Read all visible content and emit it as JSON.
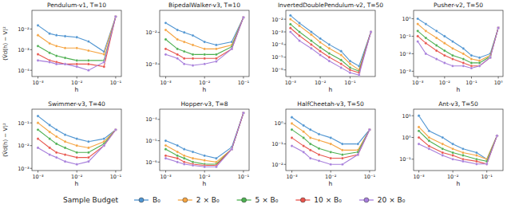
{
  "chart_data": [
    {
      "type": "line",
      "title": "Pendulum-v1, T=10",
      "xlabel": "h",
      "ylabel": "(V̂d(h) − V)²",
      "log": true,
      "marker": "circle",
      "x": [
        0.001,
        0.002,
        0.003,
        0.005,
        0.01,
        0.02,
        0.05,
        0.1
      ],
      "xlim": [
        0.0007,
        0.14
      ],
      "xticks": [
        {
          "value": 0.001,
          "label": "10⁻³"
        },
        {
          "value": 0.01,
          "label": "10⁻²"
        },
        {
          "value": 0.1,
          "label": "10⁻¹"
        }
      ],
      "ylim": [
        5e-05,
        0.08
      ],
      "yticks": [
        {
          "value": 0.0001,
          "label": "10⁻⁴"
        },
        {
          "value": 0.001,
          "label": "10⁻³"
        },
        {
          "value": 0.01,
          "label": "10⁻²"
        }
      ],
      "series": [
        {
          "name": "B₀",
          "color": "#4e94d1",
          "values": [
            0.015,
            0.006,
            0.005,
            0.0045,
            0.004,
            0.0025,
            0.0008,
            0.04
          ]
        },
        {
          "name": "2 × B₀",
          "color": "#f5a33f",
          "values": [
            0.005,
            0.002,
            0.0015,
            0.0012,
            0.0012,
            0.0009,
            0.0006,
            0.04
          ]
        },
        {
          "name": "5 × B₀",
          "color": "#4caf50",
          "values": [
            0.0015,
            0.0007,
            0.0005,
            0.0004,
            0.0003,
            0.0003,
            0.0003,
            0.04
          ]
        },
        {
          "name": "10 × B₀",
          "color": "#e8534b",
          "values": [
            0.0006,
            0.0003,
            0.00025,
            0.0002,
            0.0002,
            0.0002,
            0.00015,
            0.04
          ]
        },
        {
          "name": "20 × B₀",
          "color": "#a67ddb",
          "values": [
            0.0003,
            0.00025,
            0.0002,
            0.0002,
            0.00015,
            0.0001,
            0.00025,
            0.04
          ]
        }
      ]
    },
    {
      "type": "line",
      "title": "BipedalWalker-v3, T=10",
      "xlabel": "h",
      "log": true,
      "marker": "circle",
      "x": [
        0.001,
        0.002,
        0.003,
        0.005,
        0.01,
        0.02,
        0.05,
        0.1
      ],
      "xlim": [
        0.0007,
        0.14
      ],
      "xticks": [
        {
          "value": 0.001,
          "label": "10⁻³"
        },
        {
          "value": 0.01,
          "label": "10⁻²"
        },
        {
          "value": 0.1,
          "label": "10⁻¹"
        }
      ],
      "ylim": [
        0.0004,
        0.05
      ],
      "yticks": [
        {
          "value": 0.001,
          "label": "10⁻³"
        },
        {
          "value": 0.01,
          "label": "10⁻²"
        }
      ],
      "series": [
        {
          "name": "B₀",
          "color": "#4e94d1",
          "values": [
            0.02,
            0.012,
            0.01,
            0.008,
            0.005,
            0.004,
            0.005,
            0.03
          ]
        },
        {
          "name": "2 × B₀",
          "color": "#f5a33f",
          "values": [
            0.012,
            0.006,
            0.005,
            0.004,
            0.003,
            0.003,
            0.004,
            0.03
          ]
        },
        {
          "name": "5 × B₀",
          "color": "#4caf50",
          "values": [
            0.006,
            0.003,
            0.0025,
            0.002,
            0.002,
            0.002,
            0.0035,
            0.03
          ]
        },
        {
          "name": "10 × B₀",
          "color": "#e8534b",
          "values": [
            0.003,
            0.002,
            0.0015,
            0.0015,
            0.0015,
            0.0015,
            0.003,
            0.03
          ]
        },
        {
          "name": "20 × B₀",
          "color": "#a67ddb",
          "values": [
            0.002,
            0.0015,
            0.001,
            0.0009,
            0.001,
            0.0012,
            0.003,
            0.03
          ]
        }
      ]
    },
    {
      "type": "line",
      "title": "InvertedDoublePendulum-v2, T=50",
      "xlabel": "h",
      "log": true,
      "marker": "circle",
      "x": [
        0.001,
        0.002,
        0.005,
        0.01,
        0.02,
        0.05,
        0.1,
        0.2,
        0.5
      ],
      "xlim": [
        0.0007,
        0.7
      ],
      "xticks": [
        {
          "value": 0.001,
          "label": "10⁻³"
        },
        {
          "value": 0.01,
          "label": "10⁻²"
        },
        {
          "value": 0.1,
          "label": "10⁻¹"
        }
      ],
      "ylim": [
        3e-07,
        0.05
      ],
      "yticks": [
        {
          "value": 1e-06,
          "label": "10⁻⁶"
        },
        {
          "value": 1e-05,
          "label": "10⁻⁵"
        },
        {
          "value": 0.0001,
          "label": "10⁻⁴"
        },
        {
          "value": 0.001,
          "label": "10⁻³"
        },
        {
          "value": 0.01,
          "label": "10⁻²"
        }
      ],
      "series": [
        {
          "name": "B₀",
          "color": "#4e94d1",
          "values": [
            0.02,
            0.005,
            0.001,
            0.0003,
            0.0001,
            3e-05,
            5e-06,
            2e-06,
            0.001
          ]
        },
        {
          "name": "2 × B₀",
          "color": "#f5a33f",
          "values": [
            0.01,
            0.003,
            0.0006,
            0.00015,
            5e-05,
            1.5e-05,
            3e-06,
            1e-06,
            0.001
          ]
        },
        {
          "name": "5 × B₀",
          "color": "#4caf50",
          "values": [
            0.004,
            0.001,
            0.0002,
            6e-05,
            2e-05,
            6e-06,
            1.5e-06,
            8e-07,
            0.001
          ]
        },
        {
          "name": "10 × B₀",
          "color": "#e8534b",
          "values": [
            0.002,
            0.0005,
            0.0001,
            3e-05,
            1e-05,
            3e-06,
            1e-06,
            6e-07,
            0.001
          ]
        },
        {
          "name": "20 × B₀",
          "color": "#a67ddb",
          "values": [
            0.001,
            0.0002,
            5e-05,
            1.5e-05,
            5e-06,
            1.5e-06,
            6e-07,
            4e-07,
            0.001
          ]
        }
      ]
    },
    {
      "type": "line",
      "title": "Pusher-v2, T=50",
      "xlabel": "h",
      "log": true,
      "marker": "circle",
      "x": [
        0.001,
        0.002,
        0.005,
        0.01,
        0.02,
        0.05,
        0.1,
        0.2,
        0.5,
        1
      ],
      "xlim": [
        0.0007,
        1.5
      ],
      "xticks": [
        {
          "value": 0.001,
          "label": "10⁻³"
        },
        {
          "value": 0.01,
          "label": "10⁻²"
        },
        {
          "value": 0.1,
          "label": "10⁻¹"
        },
        {
          "value": 1,
          "label": "10⁰"
        }
      ],
      "ylim": [
        0.0005,
        3
      ],
      "yticks": [
        {
          "value": 0.001,
          "label": "10⁻³"
        },
        {
          "value": 0.01,
          "label": "10⁻²"
        },
        {
          "value": 0.1,
          "label": "10⁻¹"
        },
        {
          "value": 1,
          "label": "10⁰"
        }
      ],
      "series": [
        {
          "name": "B₀",
          "color": "#4e94d1",
          "values": [
            1,
            0.5,
            0.2,
            0.1,
            0.05,
            0.02,
            0.008,
            0.006,
            0.01,
            0.3
          ]
        },
        {
          "name": "2 × B₀",
          "color": "#f5a33f",
          "values": [
            0.5,
            0.2,
            0.08,
            0.04,
            0.02,
            0.01,
            0.005,
            0.004,
            0.008,
            0.3
          ]
        },
        {
          "name": "5 × B₀",
          "color": "#4caf50",
          "values": [
            0.2,
            0.08,
            0.03,
            0.015,
            0.008,
            0.005,
            0.003,
            0.003,
            0.007,
            0.3
          ]
        },
        {
          "name": "10 × B₀",
          "color": "#e8534b",
          "values": [
            0.1,
            0.04,
            0.015,
            0.008,
            0.005,
            0.003,
            0.002,
            0.002,
            0.006,
            0.3
          ]
        },
        {
          "name": "20 × B₀",
          "color": "#a67ddb",
          "values": [
            0.05,
            0.01,
            0.005,
            0.003,
            0.002,
            0.002,
            0.0015,
            0.002,
            0.006,
            0.3
          ]
        }
      ]
    },
    {
      "type": "line",
      "title": "Swimmer-v3, T=40",
      "xlabel": "h",
      "ylabel": "(V̂d(h) − V)²",
      "log": true,
      "marker": "circle",
      "x": [
        0.001,
        0.002,
        0.003,
        0.005,
        0.01,
        0.02,
        0.05,
        0.1
      ],
      "xlim": [
        0.0007,
        0.14
      ],
      "xticks": [
        {
          "value": 0.001,
          "label": "10⁻³"
        },
        {
          "value": 0.01,
          "label": "10⁻²"
        },
        {
          "value": 0.1,
          "label": "10⁻¹"
        }
      ],
      "ylim": [
        0.0008,
        0.4
      ],
      "yticks": [
        {
          "value": 0.001,
          "label": "10⁻³"
        },
        {
          "value": 0.01,
          "label": "10⁻²"
        },
        {
          "value": 0.1,
          "label": "10⁻¹"
        }
      ],
      "series": [
        {
          "name": "B₀",
          "color": "#4e94d1",
          "values": [
            0.2,
            0.08,
            0.05,
            0.03,
            0.02,
            0.015,
            0.02,
            0.05
          ]
        },
        {
          "name": "2 × B₀",
          "color": "#f5a33f",
          "values": [
            0.1,
            0.04,
            0.025,
            0.015,
            0.01,
            0.008,
            0.015,
            0.05
          ]
        },
        {
          "name": "5 × B₀",
          "color": "#4caf50",
          "values": [
            0.05,
            0.02,
            0.012,
            0.008,
            0.005,
            0.005,
            0.012,
            0.05
          ]
        },
        {
          "name": "10 × B₀",
          "color": "#e8534b",
          "values": [
            0.02,
            0.008,
            0.005,
            0.004,
            0.003,
            0.003,
            0.01,
            0.05
          ]
        },
        {
          "name": "20 × B₀",
          "color": "#a67ddb",
          "values": [
            0.008,
            0.004,
            0.003,
            0.002,
            0.0015,
            0.002,
            0.01,
            0.05
          ]
        }
      ]
    },
    {
      "type": "line",
      "title": "Hopper-v3, T=8",
      "xlabel": "h",
      "log": true,
      "marker": "circle",
      "x": [
        0.001,
        0.002,
        0.003,
        0.005,
        0.01,
        0.02,
        0.05,
        0.1
      ],
      "xlim": [
        0.0007,
        0.14
      ],
      "xticks": [
        {
          "value": 0.001,
          "label": "10⁻³"
        },
        {
          "value": 0.01,
          "label": "10⁻²"
        },
        {
          "value": 0.1,
          "label": "10⁻¹"
        }
      ],
      "ylim": [
        4e-07,
        0.0003
      ],
      "yticks": [
        {
          "value": 1e-06,
          "label": "10⁻⁶"
        },
        {
          "value": 1e-05,
          "label": "10⁻⁵"
        },
        {
          "value": 0.0001,
          "label": "10⁻⁴"
        }
      ],
      "series": [
        {
          "name": "B₀",
          "color": "#4e94d1",
          "values": [
            1e-05,
            6e-06,
            4e-06,
            3e-06,
            2e-06,
            1.5e-06,
            5e-06,
            0.0002
          ]
        },
        {
          "name": "2 × B₀",
          "color": "#f5a33f",
          "values": [
            6e-06,
            3e-06,
            2e-06,
            1.5e-06,
            1.2e-06,
            1e-06,
            4e-06,
            0.0002
          ]
        },
        {
          "name": "5 × B₀",
          "color": "#4caf50",
          "values": [
            4e-06,
            2e-06,
            1.5e-06,
            1e-06,
            8e-07,
            8e-07,
            4e-06,
            0.0002
          ]
        },
        {
          "name": "10 × B₀",
          "color": "#e8534b",
          "values": [
            2e-06,
            1.5e-06,
            1e-06,
            8e-07,
            7e-07,
            7e-07,
            4e-06,
            0.0002
          ]
        },
        {
          "name": "20 × B₀",
          "color": "#a67ddb",
          "values": [
            1.5e-06,
            1e-06,
            8e-07,
            7e-07,
            6e-07,
            6e-07,
            4e-06,
            0.0002
          ]
        }
      ]
    },
    {
      "type": "line",
      "title": "HalfCheetah-v3, T=50",
      "xlabel": "h",
      "log": true,
      "marker": "circle",
      "x": [
        0.001,
        0.002,
        0.003,
        0.005,
        0.01,
        0.02,
        0.05,
        0.1
      ],
      "xlim": [
        0.0007,
        0.14
      ],
      "xticks": [
        {
          "value": 0.001,
          "label": "10⁻³"
        },
        {
          "value": 0.01,
          "label": "10⁻²"
        },
        {
          "value": 0.1,
          "label": "10⁻¹"
        }
      ],
      "ylim": [
        0.005,
        5
      ],
      "yticks": [
        {
          "value": 0.01,
          "label": "10⁻²"
        },
        {
          "value": 0.1,
          "label": "10⁻¹"
        },
        {
          "value": 1,
          "label": "10⁰"
        }
      ],
      "series": [
        {
          "name": "B₀",
          "color": "#4e94d1",
          "values": [
            2,
            0.8,
            0.5,
            0.3,
            0.2,
            0.1,
            0.1,
            0.5
          ]
        },
        {
          "name": "2 × B₀",
          "color": "#f5a33f",
          "values": [
            1,
            0.4,
            0.2,
            0.15,
            0.1,
            0.05,
            0.05,
            0.5
          ]
        },
        {
          "name": "5 × B₀",
          "color": "#4caf50",
          "values": [
            0.5,
            0.2,
            0.1,
            0.06,
            0.04,
            0.03,
            0.04,
            0.5
          ]
        },
        {
          "name": "10 × B₀",
          "color": "#e8534b",
          "values": [
            0.2,
            0.08,
            0.05,
            0.03,
            0.02,
            0.02,
            0.03,
            0.5
          ]
        },
        {
          "name": "20 × B₀",
          "color": "#a67ddb",
          "values": [
            0.08,
            0.04,
            0.02,
            0.015,
            0.01,
            0.01,
            0.03,
            0.5
          ]
        }
      ]
    },
    {
      "type": "line",
      "title": "Ant-v3, T=50",
      "xlabel": "h",
      "log": true,
      "marker": "circle",
      "x": [
        0.001,
        0.002,
        0.005,
        0.01,
        0.02,
        0.05,
        0.1,
        0.2
      ],
      "xlim": [
        0.0007,
        0.3
      ],
      "xticks": [
        {
          "value": 0.001,
          "label": "10⁻³"
        },
        {
          "value": 0.01,
          "label": "10⁻²"
        },
        {
          "value": 0.1,
          "label": "10⁻¹"
        }
      ],
      "ylim": [
        0.03,
        20
      ],
      "yticks": [
        {
          "value": 0.1,
          "label": "10⁻¹"
        },
        {
          "value": 1,
          "label": "10⁰"
        },
        {
          "value": 10,
          "label": "10¹"
        }
      ],
      "series": [
        {
          "name": "B₀",
          "color": "#4e94d1",
          "values": [
            10,
            2,
            1,
            0.5,
            0.3,
            0.2,
            0.1,
            1.2
          ]
        },
        {
          "name": "2 × B₀",
          "color": "#f5a33f",
          "values": [
            3,
            1,
            0.5,
            0.3,
            0.2,
            0.15,
            0.1,
            1.2
          ]
        },
        {
          "name": "5 × B₀",
          "color": "#4caf50",
          "values": [
            2,
            0.7,
            0.3,
            0.2,
            0.15,
            0.1,
            0.08,
            1.2
          ]
        },
        {
          "name": "10 × B₀",
          "color": "#e8534b",
          "values": [
            1,
            0.4,
            0.2,
            0.15,
            0.1,
            0.08,
            0.06,
            1.2
          ]
        },
        {
          "name": "20 × B₀",
          "color": "#a67ddb",
          "values": [
            0.5,
            0.3,
            0.15,
            0.1,
            0.08,
            0.06,
            0.06,
            1.2
          ]
        }
      ]
    }
  ],
  "legend_title": "Sample Budget"
}
